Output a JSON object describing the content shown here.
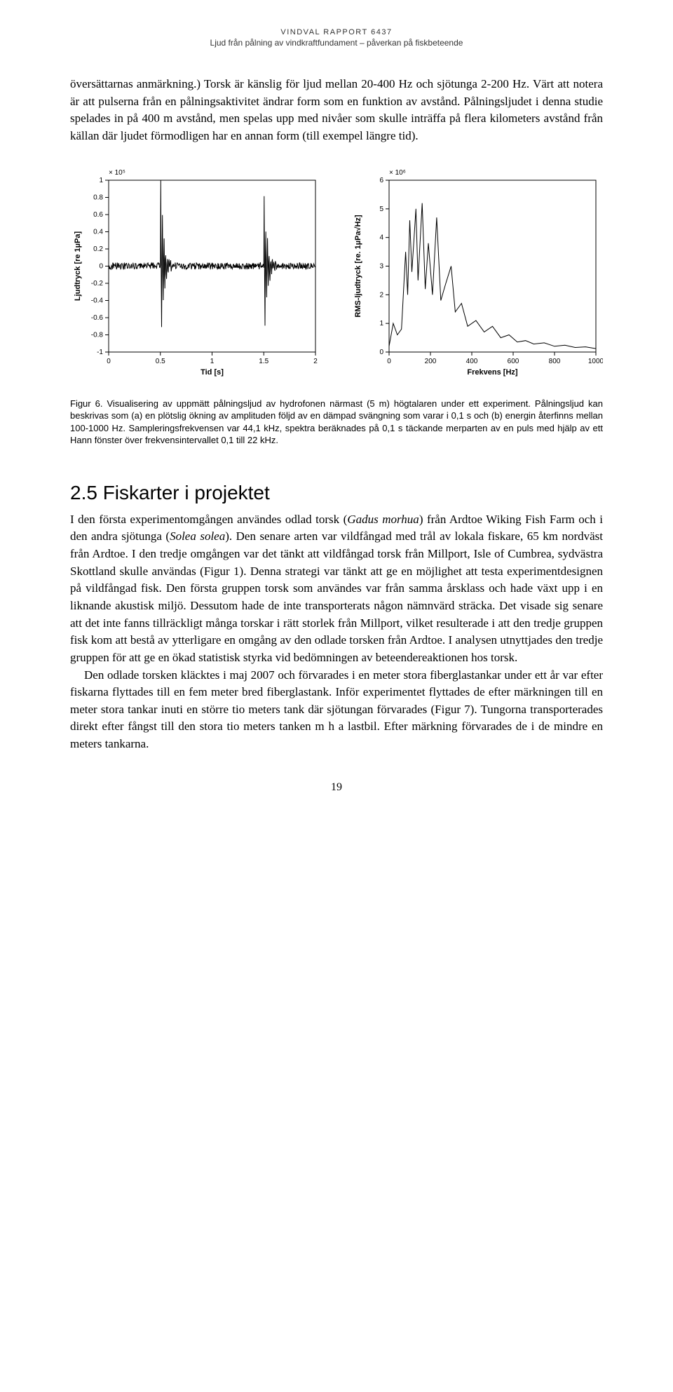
{
  "header": {
    "title": "VINDVAL RAPPORT 6437",
    "subtitle": "Ljud från pålning av vindkraftfundament – påverkan på fiskbeteende"
  },
  "para1": "översättarnas anmärkning.) Torsk är känslig för ljud mellan 20-400 Hz och sjötunga 2-200 Hz. Värt att notera är att pulserna från en pålningsaktivitet ändrar form som en funktion av avstånd. Pålningsljudet i denna studie spelades in på 400 m avstånd, men spelas upp med nivåer som skulle inträffa på flera kilometers avstånd från källan där ljudet förmodligen har en annan form (till exempel längre tid).",
  "figure6": {
    "chart_a": {
      "type": "line",
      "y_scale_label": "× 10⁵",
      "xlabel": "Tid [s]",
      "ylabel": "Ljudtryck [re 1µPa]",
      "xlim": [
        0,
        2
      ],
      "ylim": [
        -1,
        1
      ],
      "xticks": [
        0,
        0.5,
        1,
        1.5,
        2
      ],
      "yticks": [
        -1,
        -0.8,
        -0.6,
        -0.4,
        -0.2,
        0,
        0.2,
        0.4,
        0.6,
        0.8,
        1
      ],
      "xtick_labels": [
        "0",
        "0.5",
        "1",
        "1.5",
        "2"
      ],
      "ytick_labels": [
        "-1",
        "-0.8",
        "-0.6",
        "-0.4",
        "-0.2",
        "0",
        "0.2",
        "0.4",
        "0.6",
        "0.8",
        "1"
      ],
      "line_color": "#000000",
      "line_width": 1,
      "background_color": "#ffffff",
      "axis_color": "#000000",
      "font_size": 10,
      "pulses": [
        {
          "t": 0.5,
          "amp": 1.0,
          "decay_to": 0.75
        },
        {
          "t": 1.5,
          "amp": 0.85,
          "decay_to": 1.75
        }
      ],
      "baseline_noise_amp": 0.04
    },
    "chart_b": {
      "type": "line",
      "y_scale_label": "× 10⁶",
      "xlabel": "Frekvens [Hz]",
      "ylabel": "RMS-ljudtryck [re. 1µPa√Hz]",
      "xlim": [
        0,
        1000
      ],
      "ylim": [
        0,
        6
      ],
      "xticks": [
        0,
        200,
        400,
        600,
        800,
        1000
      ],
      "yticks": [
        0,
        1,
        2,
        3,
        4,
        5,
        6
      ],
      "xtick_labels": [
        "0",
        "200",
        "400",
        "600",
        "800",
        "1000"
      ],
      "ytick_labels": [
        "0",
        "1",
        "2",
        "3",
        "4",
        "5",
        "6"
      ],
      "line_color": "#000000",
      "line_width": 1,
      "background_color": "#ffffff",
      "axis_color": "#000000",
      "font_size": 10,
      "spectrum_points": [
        [
          0,
          0.2
        ],
        [
          20,
          1.0
        ],
        [
          40,
          0.6
        ],
        [
          60,
          0.8
        ],
        [
          80,
          3.5
        ],
        [
          90,
          2.0
        ],
        [
          100,
          4.6
        ],
        [
          110,
          2.8
        ],
        [
          130,
          5.0
        ],
        [
          140,
          2.5
        ],
        [
          160,
          5.2
        ],
        [
          175,
          2.2
        ],
        [
          190,
          3.8
        ],
        [
          210,
          2.0
        ],
        [
          230,
          4.7
        ],
        [
          250,
          1.8
        ],
        [
          270,
          2.3
        ],
        [
          300,
          3.0
        ],
        [
          320,
          1.4
        ],
        [
          350,
          1.7
        ],
        [
          380,
          0.9
        ],
        [
          420,
          1.1
        ],
        [
          460,
          0.7
        ],
        [
          500,
          0.9
        ],
        [
          540,
          0.5
        ],
        [
          580,
          0.6
        ],
        [
          620,
          0.35
        ],
        [
          660,
          0.4
        ],
        [
          700,
          0.28
        ],
        [
          750,
          0.32
        ],
        [
          800,
          0.2
        ],
        [
          850,
          0.24
        ],
        [
          900,
          0.16
        ],
        [
          950,
          0.18
        ],
        [
          1000,
          0.12
        ]
      ]
    },
    "label": "Figur 6.",
    "caption": " Visualisering av uppmätt pålningsljud av hydrofonen närmast (5 m) högtalaren under ett experiment. Pålningsljud kan beskrivas som (a) en plötslig ökning av amplituden följd av en dämpad svängning som varar i 0,1 s och (b) energin återfinns mellan 100-1000 Hz. Sampleringsfrekvensen var 44,1 kHz, spektra beräknades på 0,1 s täckande merparten av en puls med hjälp av ett Hann fönster över frekvensintervallet 0,1 till 22 kHz."
  },
  "section25": {
    "heading": "2.5 Fiskarter i projektet",
    "p1a": "I den första experimentomgången användes odlad torsk (",
    "p1b": "Gadus morhua",
    "p1c": ") från Ardtoe Wiking Fish Farm och i den andra sjötunga (",
    "p1d": "Solea solea",
    "p1e": "). Den senare arten var vildfångad med trål av lokala fiskare, 65 km nordväst från Ardtoe. I den tredje omgången var det tänkt att vildfångad torsk från Millport, Isle of Cumbrea, sydvästra Skottland skulle användas (Figur 1). Denna strategi var tänkt att ge en möjlighet att testa experimentdesignen på vildfångad fisk. Den första gruppen torsk som användes var från samma årsklass och hade växt upp i en liknande akustisk miljö. Dessutom hade de inte transporterats någon nämnvärd sträcka. Det visade sig senare att det inte fanns tillräckligt många torskar i rätt storlek från Millport, vilket resulterade i att den tredje gruppen fisk kom att bestå av ytterligare en omgång av den odlade torsken från Ardtoe. I analysen utnyttjades den tredje gruppen för att ge en ökad statistisk styrka vid bedömningen av beteendereaktionen hos torsk.",
    "p2": "Den odlade torsken kläcktes i maj 2007 och förvarades i en meter stora fiberglastankar under ett år var efter fiskarna flyttades till en fem meter bred fiberglastank. Inför experimentet flyttades de efter märkningen till en meter stora tankar inuti en större tio meters tank där sjötungan förvarades (Figur 7). Tungorna transporterades direkt efter fångst till den stora tio meters tanken m h a lastbil. Efter märkning förvarades de i de mindre en meters tankarna."
  },
  "page_number": "19"
}
